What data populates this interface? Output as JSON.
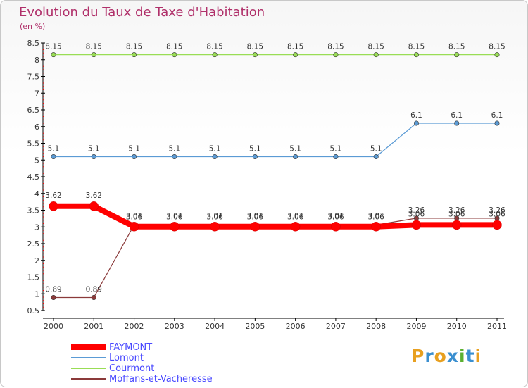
{
  "header": {
    "title": "Evolution du Taux de Taxe d'Habitation",
    "subtitle": "(en %)"
  },
  "chart_data": {
    "type": "line",
    "title": "Evolution du Taux de Taxe d'Habitation",
    "ylabel": "(en %)",
    "xlabel": "",
    "ylim": [
      0.5,
      8.5
    ],
    "yticks": [
      "0.5",
      "1",
      "1.5",
      "2",
      "2.5",
      "3",
      "3.5",
      "4",
      "4.5",
      "5",
      "5.5",
      "6",
      "6.5",
      "7",
      "7.5",
      "8",
      "8.5"
    ],
    "categories": [
      "2000",
      "2001",
      "2002",
      "2003",
      "2004",
      "2005",
      "2006",
      "2007",
      "2008",
      "2009",
      "2010",
      "2011"
    ],
    "series": [
      {
        "name": "FAYMONT",
        "color": "#ff0000",
        "values": [
          3.62,
          3.62,
          3.01,
          3.01,
          3.01,
          3.01,
          3.01,
          3.01,
          3.01,
          3.06,
          3.06,
          3.06
        ],
        "labels": [
          "3.62",
          "3.62",
          "3.01",
          "3.01",
          "3.01",
          "3.01",
          "3.01",
          "3.01",
          "3.01",
          "3.06",
          "3.06",
          "3.06"
        ]
      },
      {
        "name": "Lomont",
        "color": "#5b9bd5",
        "values": [
          5.1,
          5.1,
          5.1,
          5.1,
          5.1,
          5.1,
          5.1,
          5.1,
          5.1,
          6.1,
          6.1,
          6.1
        ],
        "labels": [
          "5.1",
          "5.1",
          "5.1",
          "5.1",
          "5.1",
          "5.1",
          "5.1",
          "5.1",
          "5.1",
          "6.1",
          "6.1",
          "6.1"
        ]
      },
      {
        "name": "Courmont",
        "color": "#99dd55",
        "values": [
          8.15,
          8.15,
          8.15,
          8.15,
          8.15,
          8.15,
          8.15,
          8.15,
          8.15,
          8.15,
          8.15,
          8.15
        ],
        "labels": [
          "8.15",
          "8.15",
          "8.15",
          "8.15",
          "8.15",
          "8.15",
          "8.15",
          "8.15",
          "8.15",
          "8.15",
          "8.15",
          "8.15"
        ]
      },
      {
        "name": "Moffans-et-Vacheresse",
        "color": "#8b3a3a",
        "values": [
          0.89,
          0.89,
          3.06,
          3.06,
          3.06,
          3.06,
          3.06,
          3.06,
          3.06,
          3.26,
          3.26,
          3.26
        ],
        "labels": [
          "0.89",
          "0.89",
          "3.06",
          "3.06",
          "3.06",
          "3.06",
          "3.06",
          "3.06",
          "3.06",
          "3.26",
          "3.26",
          "3.26"
        ]
      }
    ],
    "legend_position": "bottom-left"
  },
  "logo": {
    "letters": [
      "P",
      "r",
      "o",
      "x",
      "i",
      "t",
      "i"
    ],
    "colors": [
      "#e8a020",
      "#3a8fd0",
      "#e8a020",
      "#3a8fd0",
      "#5bb030",
      "#3a8fd0",
      "#e8a020"
    ]
  }
}
